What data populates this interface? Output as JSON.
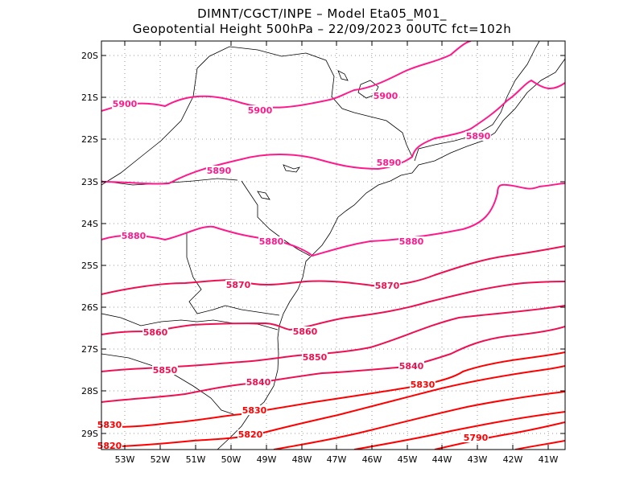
{
  "header": {
    "line1": "DIMNT/CGCT/INPE –  Model Eta05_M01_",
    "line2": "Geopotential Height 500hPa –  22/09/2023 00UTC fct=102h"
  },
  "axes": {
    "lat_labels": [
      "20S",
      "21S",
      "22S",
      "23S",
      "24S",
      "25S",
      "26S",
      "27S",
      "28S",
      "29S"
    ],
    "lon_labels": [
      "53W",
      "52W",
      "51W",
      "50W",
      "49W",
      "48W",
      "47W",
      "46W",
      "45W",
      "44W",
      "43W",
      "42W",
      "41W"
    ]
  },
  "colors": {
    "pink": "#ff1a8c",
    "crimson": "#ee1050",
    "red": "#ff0000",
    "coast": "#000000",
    "grid": "#999999"
  },
  "contour_labels": [
    {
      "text": "5900",
      "color": "pink"
    },
    {
      "text": "5900",
      "color": "pink"
    },
    {
      "text": "5900",
      "color": "pink"
    },
    {
      "text": "5890",
      "color": "pink"
    },
    {
      "text": "5890",
      "color": "pink"
    },
    {
      "text": "5890",
      "color": "pink"
    },
    {
      "text": "5880",
      "color": "pink"
    },
    {
      "text": "5880",
      "color": "pink"
    },
    {
      "text": "5880",
      "color": "pink"
    },
    {
      "text": "5870",
      "color": "crimson"
    },
    {
      "text": "5870",
      "color": "crimson"
    },
    {
      "text": "5860",
      "color": "crimson"
    },
    {
      "text": "5860",
      "color": "crimson"
    },
    {
      "text": "5850",
      "color": "crimson"
    },
    {
      "text": "5850",
      "color": "crimson"
    },
    {
      "text": "5840",
      "color": "crimson"
    },
    {
      "text": "5840",
      "color": "crimson"
    },
    {
      "text": "5830",
      "color": "red"
    },
    {
      "text": "5830",
      "color": "red"
    },
    {
      "text": "5830",
      "color": "red"
    },
    {
      "text": "5820",
      "color": "red"
    },
    {
      "text": "5820",
      "color": "red"
    },
    {
      "text": "5790",
      "color": "red"
    }
  ]
}
